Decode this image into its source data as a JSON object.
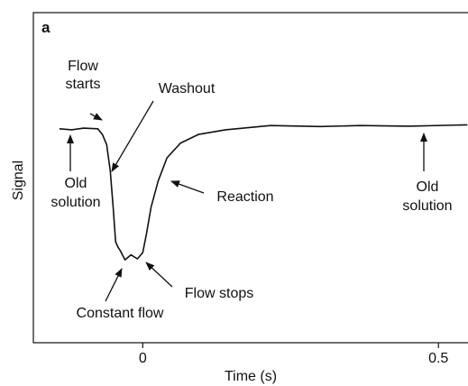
{
  "chart_data": {
    "type": "line",
    "panel_label": "a",
    "y_label": "Signal",
    "x_label": "Time (s)",
    "xlim": [
      -0.185,
      0.55
    ],
    "ylim": [
      0,
      1
    ],
    "xticks": [
      0,
      0.5
    ],
    "color": "#111111",
    "x": [
      -0.141,
      -0.12,
      -0.1,
      -0.076,
      -0.068,
      -0.061,
      -0.055,
      -0.05,
      -0.046,
      -0.042,
      -0.038,
      -0.03,
      -0.02,
      -0.009,
      0,
      0.006,
      0.014,
      0.026,
      0.041,
      0.064,
      0.094,
      0.14,
      0.216,
      0.3,
      0.368,
      0.45,
      0.549
    ],
    "values": [
      0.648,
      0.645,
      0.65,
      0.648,
      0.63,
      0.6,
      0.52,
      0.41,
      0.306,
      0.29,
      0.279,
      0.251,
      0.266,
      0.254,
      0.273,
      0.328,
      0.41,
      0.49,
      0.56,
      0.605,
      0.631,
      0.645,
      0.658,
      0.655,
      0.658,
      0.656,
      0.66
    ],
    "annotations": [
      {
        "lines": [
          "Flow",
          "starts"
        ]
      },
      {
        "lines": [
          "Washout"
        ]
      },
      {
        "lines": [
          "Old",
          "solution"
        ]
      },
      {
        "lines": [
          "Reaction"
        ]
      },
      {
        "lines": [
          "Old",
          "solution"
        ]
      },
      {
        "lines": [
          "Flow stops"
        ]
      },
      {
        "lines": [
          "Constant flow"
        ]
      }
    ]
  }
}
